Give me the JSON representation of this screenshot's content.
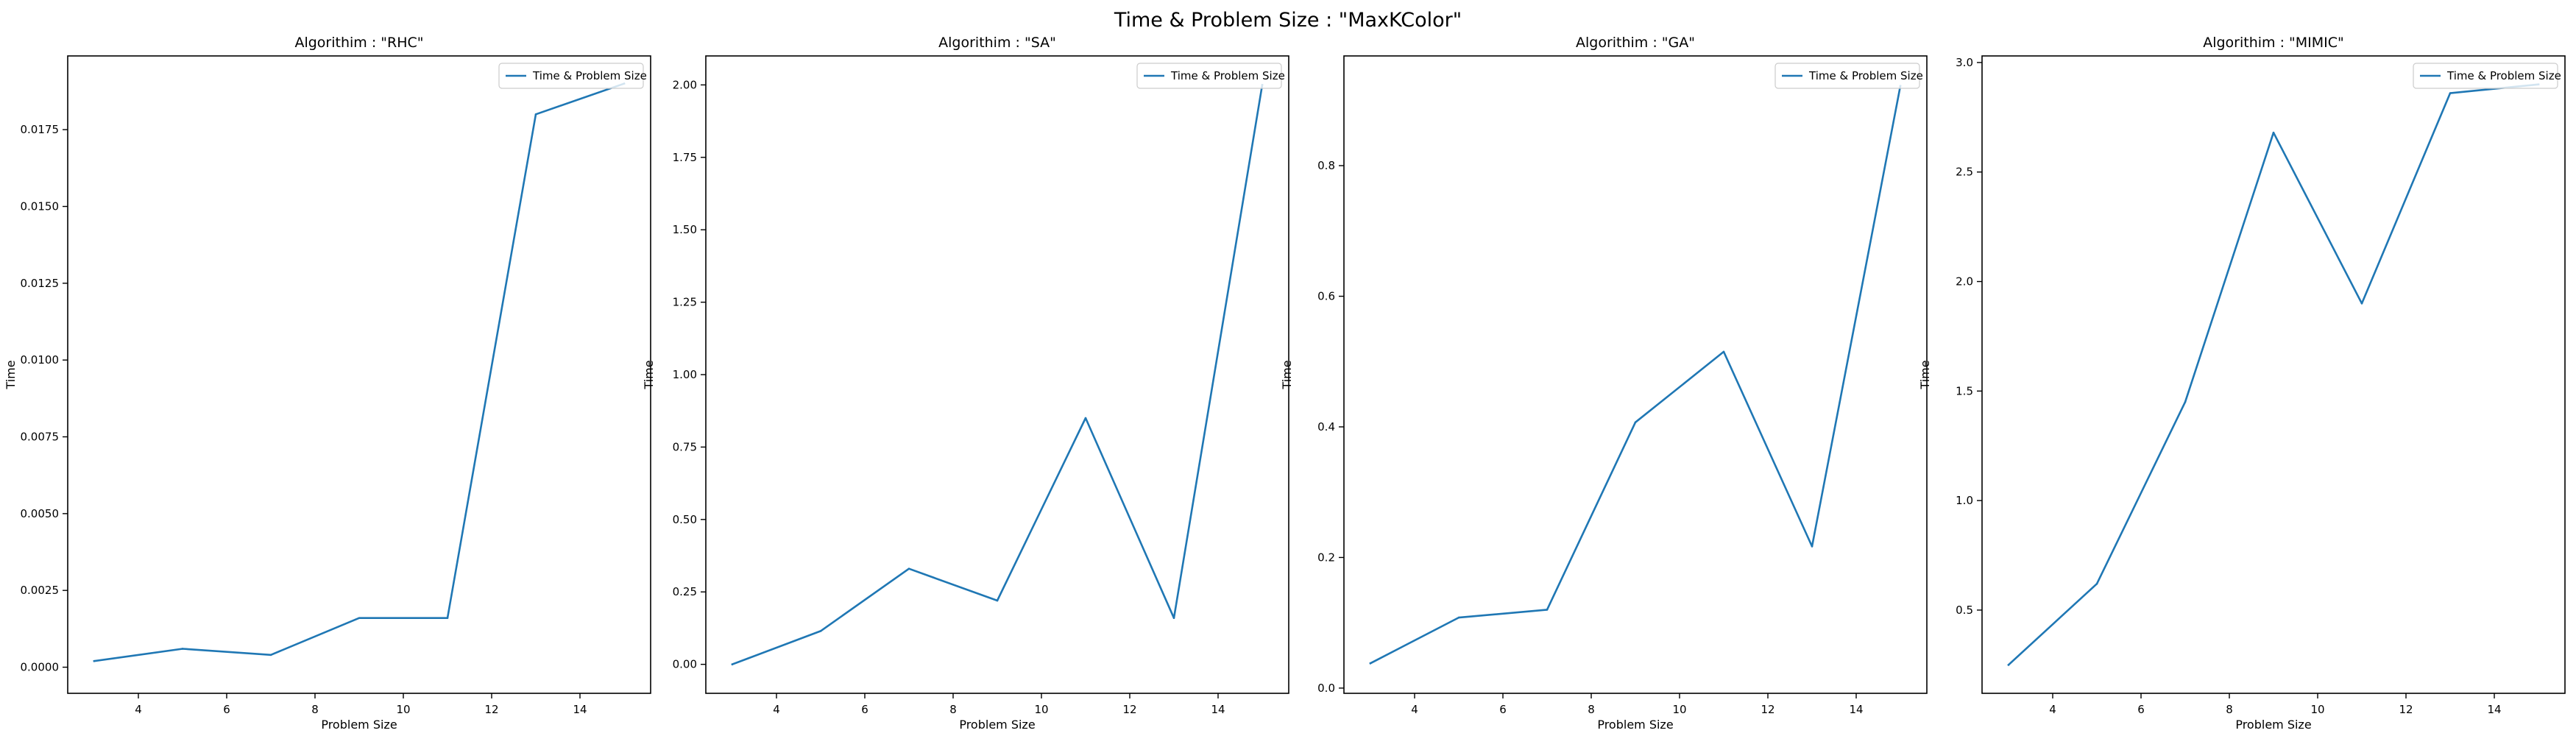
{
  "figure": {
    "title": "Time & Problem Size : \"MaxKColor\""
  },
  "colors": {
    "series": "#1f77b4",
    "axes": "#000000",
    "legend_border": "#cccccc"
  },
  "chart_data": [
    {
      "type": "line",
      "title": "Algorithim : \"RHC\"",
      "xlabel": "Problem Size",
      "ylabel": "Time",
      "xlim": [
        2.4,
        15.6
      ],
      "ylim": [
        -0.00085,
        0.0199
      ],
      "xticks": [
        4,
        6,
        8,
        10,
        12,
        14
      ],
      "xtick_labels": [
        "4",
        "6",
        "8",
        "10",
        "12",
        "14"
      ],
      "yticks": [
        0.0,
        0.0025,
        0.005,
        0.0075,
        0.01,
        0.0125,
        0.015,
        0.0175
      ],
      "ytick_labels": [
        "0.0000",
        "0.0025",
        "0.0050",
        "0.0075",
        "0.0100",
        "0.0125",
        "0.0150",
        "0.0175"
      ],
      "legend_placement": "upper right",
      "grid": false,
      "series": [
        {
          "name": "Time & Problem Size",
          "x": [
            3,
            5,
            7,
            9,
            11,
            13,
            15
          ],
          "y": [
            0.0002,
            0.0006,
            0.0004,
            0.0016,
            0.0016,
            0.018,
            0.019
          ]
        }
      ]
    },
    {
      "type": "line",
      "title": "Algorithim : \"SA\"",
      "xlabel": "Problem Size",
      "ylabel": "Time",
      "xlim": [
        2.4,
        15.6
      ],
      "ylim": [
        -0.1,
        2.1
      ],
      "xticks": [
        4,
        6,
        8,
        10,
        12,
        14
      ],
      "xtick_labels": [
        "4",
        "6",
        "8",
        "10",
        "12",
        "14"
      ],
      "yticks": [
        0.0,
        0.25,
        0.5,
        0.75,
        1.0,
        1.25,
        1.5,
        1.75,
        2.0
      ],
      "ytick_labels": [
        "0.00",
        "0.25",
        "0.50",
        "0.75",
        "1.00",
        "1.25",
        "1.50",
        "1.75",
        "2.00"
      ],
      "legend_placement": "upper right",
      "grid": false,
      "series": [
        {
          "name": "Time & Problem Size",
          "x": [
            3,
            5,
            7,
            9,
            11,
            13,
            15
          ],
          "y": [
            0.0,
            0.115,
            0.33,
            0.22,
            0.85,
            0.16,
            2.0
          ]
        }
      ]
    },
    {
      "type": "line",
      "title": "Algorithim : \"GA\"",
      "xlabel": "Problem Size",
      "ylabel": "Time",
      "xlim": [
        2.4,
        15.6
      ],
      "ylim": [
        -0.008,
        0.968
      ],
      "xticks": [
        4,
        6,
        8,
        10,
        12,
        14
      ],
      "xtick_labels": [
        "4",
        "6",
        "8",
        "10",
        "12",
        "14"
      ],
      "yticks": [
        0.0,
        0.2,
        0.4,
        0.6,
        0.8
      ],
      "ytick_labels": [
        "0.0",
        "0.2",
        "0.4",
        "0.6",
        "0.8"
      ],
      "legend_placement": "upper right",
      "grid": false,
      "series": [
        {
          "name": "Time & Problem Size",
          "x": [
            3,
            5,
            7,
            9,
            11,
            13,
            15
          ],
          "y": [
            0.038,
            0.108,
            0.12,
            0.407,
            0.515,
            0.217,
            0.922
          ]
        }
      ]
    },
    {
      "type": "line",
      "title": "Algorithim : \"MIMIC\"",
      "xlabel": "Problem Size",
      "ylabel": "Time",
      "xlim": [
        2.4,
        15.6
      ],
      "ylim": [
        0.12,
        3.03
      ],
      "xticks": [
        4,
        6,
        8,
        10,
        12,
        14
      ],
      "xtick_labels": [
        "4",
        "6",
        "8",
        "10",
        "12",
        "14"
      ],
      "yticks": [
        0.5,
        1.0,
        1.5,
        2.0,
        2.5,
        3.0
      ],
      "ytick_labels": [
        "0.5",
        "1.0",
        "1.5",
        "2.0",
        "2.5",
        "3.0"
      ],
      "legend_placement": "upper right",
      "grid": false,
      "series": [
        {
          "name": "Time & Problem Size",
          "x": [
            3,
            5,
            7,
            9,
            11,
            13,
            15
          ],
          "y": [
            0.25,
            0.62,
            1.45,
            2.68,
            1.9,
            2.86,
            2.9
          ]
        }
      ]
    }
  ]
}
